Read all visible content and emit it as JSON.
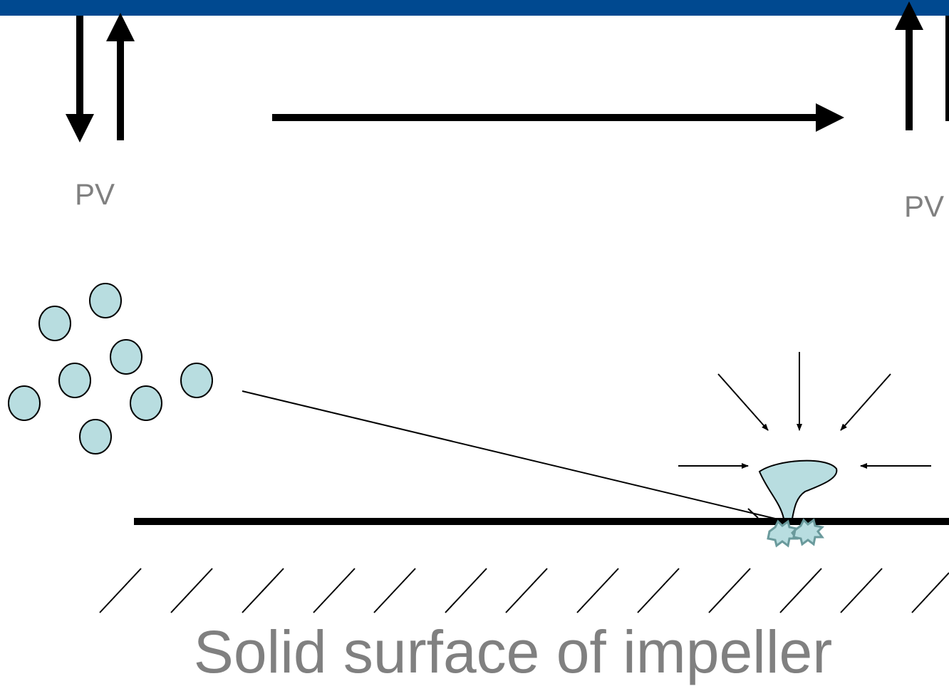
{
  "labels": [
    "PV",
    "PV"
  ],
  "caption": "Solid surface of impeller"
}
